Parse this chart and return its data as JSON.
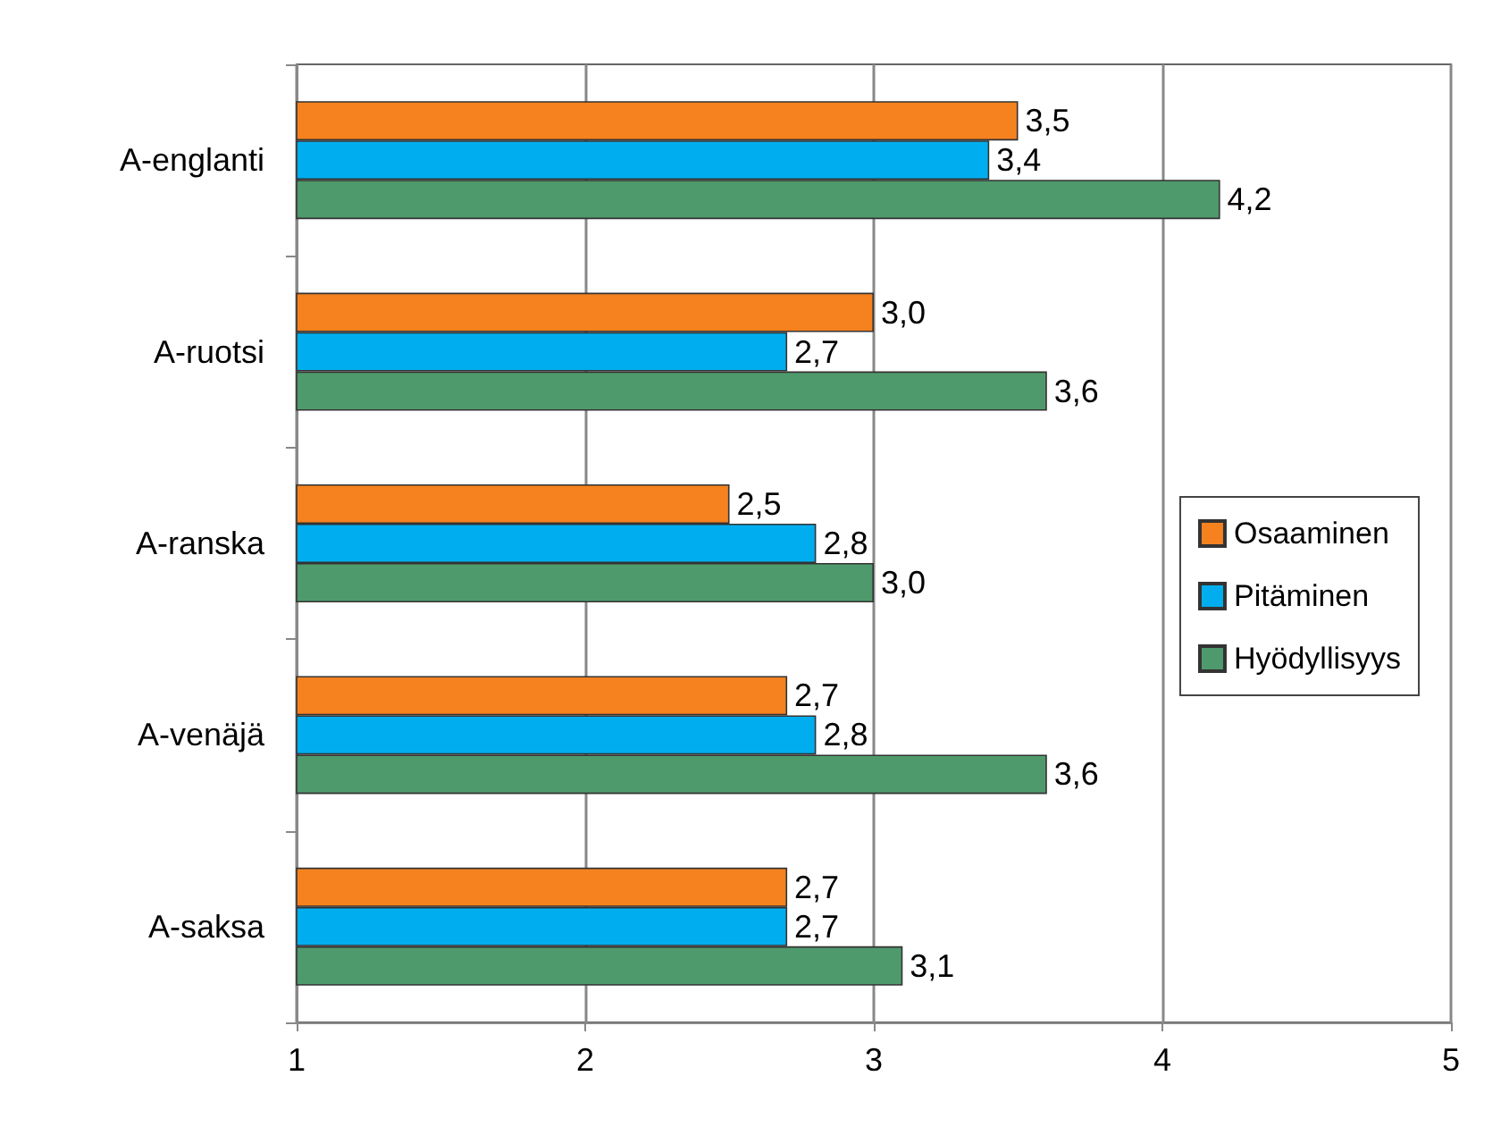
{
  "chart_data": {
    "type": "bar",
    "orientation": "horizontal",
    "categories": [
      "A-englanti",
      "A-ruotsi",
      "A-ranska",
      "A-venäjä",
      "A-saksa"
    ],
    "series": [
      {
        "name": "Osaaminen",
        "color": "#f5821f",
        "values": [
          3.5,
          3.0,
          2.5,
          2.7,
          2.7
        ],
        "value_labels": [
          "3,5",
          "3,0",
          "2,5",
          "2,7",
          "2,7"
        ]
      },
      {
        "name": "Pitäminen",
        "color": "#00aeef",
        "values": [
          3.4,
          2.7,
          2.8,
          2.8,
          2.7
        ],
        "value_labels": [
          "3,4",
          "2,7",
          "2,8",
          "2,8",
          "2,7"
        ]
      },
      {
        "name": "Hyödyllisyys",
        "color": "#4f9a6c",
        "values": [
          4.2,
          3.6,
          3.0,
          3.6,
          3.1
        ],
        "value_labels": [
          "4,2",
          "3,6",
          "3,0",
          "3,6",
          "3,1"
        ]
      }
    ],
    "xlim": [
      1,
      5
    ],
    "xticks": [
      1,
      2,
      3,
      4,
      5
    ],
    "grid": "x",
    "legend": "right"
  }
}
